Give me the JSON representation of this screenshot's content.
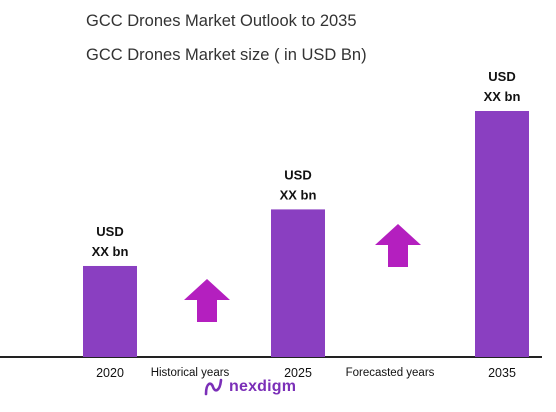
{
  "chart_data": {
    "type": "bar",
    "title": "GCC Drones Market Outlook to 2035",
    "subtitle": "GCC Drones Market size ( in USD Bn)",
    "categories": [
      "2020",
      "2025",
      "2035"
    ],
    "values": [
      0.37,
      0.6,
      1.0
    ],
    "bar_labels": [
      [
        "USD",
        "XX bn"
      ],
      [
        "USD",
        "XX bn"
      ],
      [
        "USD",
        "XX bn"
      ]
    ],
    "period_labels": [
      "Historical years",
      "Forecasted years"
    ],
    "bar_color": "#8a3fc1",
    "arrow_color": "#b41fbf",
    "ylim": [
      0,
      1.0
    ],
    "grid": false,
    "legend": "none"
  },
  "brand": {
    "name": "nexdigm",
    "color": "#7b2fb8"
  }
}
